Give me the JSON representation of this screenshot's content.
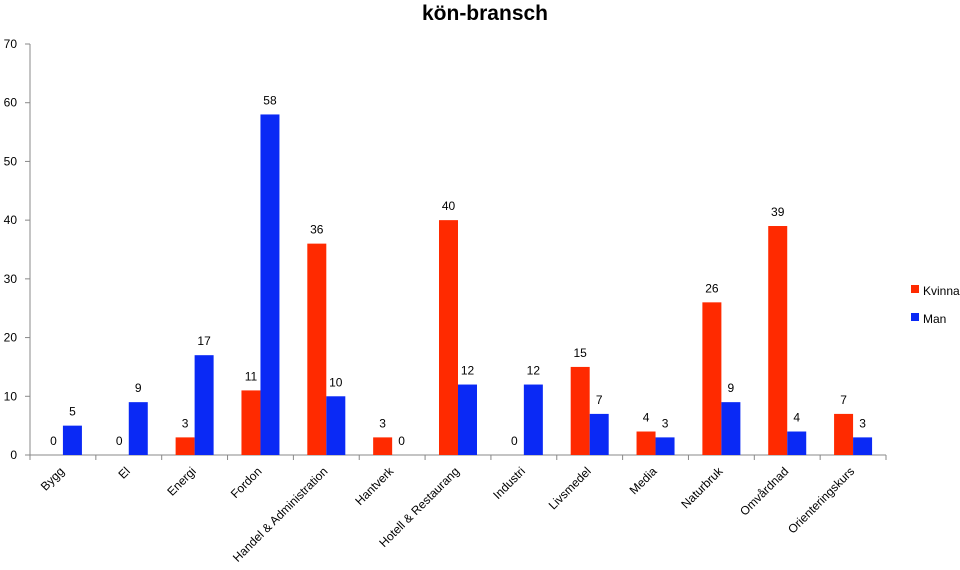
{
  "chart_data": {
    "type": "bar",
    "title": "kön-bransch",
    "xlabel": "",
    "ylabel": "",
    "ylim": [
      0,
      70
    ],
    "yticks": [
      0,
      10,
      20,
      30,
      40,
      50,
      60,
      70
    ],
    "grid": false,
    "legend_position": "right",
    "categories": [
      "Bygg",
      "El",
      "Energi",
      "Fordon",
      "Handel & Administration",
      "Hantverk",
      "Hotell & Restaurang",
      "Industri",
      "Livsmedel",
      "Media",
      "Naturbruk",
      "Omvårdnad",
      "Orienteringskurs"
    ],
    "series": [
      {
        "name": "Kvinna",
        "color": "#ff2a00",
        "values": [
          0,
          0,
          3,
          11,
          36,
          3,
          40,
          0,
          15,
          4,
          26,
          39,
          7
        ]
      },
      {
        "name": "Man",
        "color": "#0a29f5",
        "values": [
          5,
          9,
          17,
          58,
          10,
          0,
          12,
          12,
          7,
          3,
          9,
          4,
          3
        ]
      }
    ]
  }
}
